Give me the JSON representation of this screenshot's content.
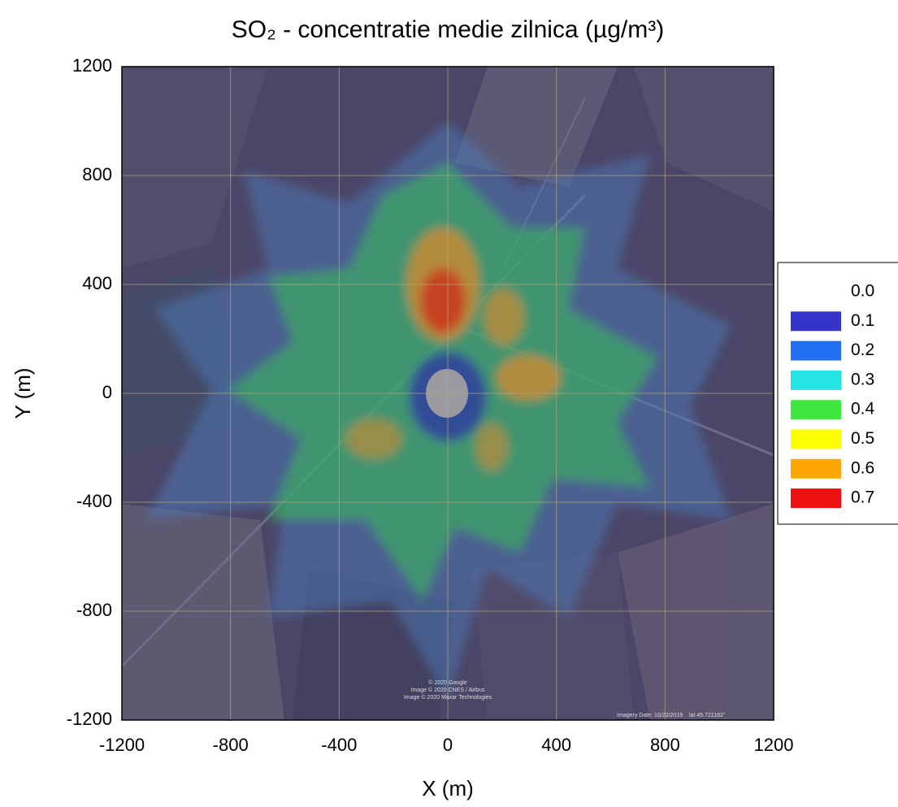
{
  "chart_data": {
    "type": "contour",
    "title": "SO₂ - concentratie medie zilnica (µg/m³)",
    "x_label": "X (m)",
    "y_label": "Y (m)",
    "xlim": [
      -1200,
      1200
    ],
    "ylim": [
      -1200,
      1200
    ],
    "xticks": [
      -1200,
      -800,
      -400,
      0,
      400,
      800,
      1200
    ],
    "yticks": [
      -1200,
      -800,
      -400,
      0,
      400,
      800,
      1200
    ],
    "grid": true,
    "grid_color": "#b8a77a",
    "legend_position": "right",
    "levels": [
      {
        "value": 0,
        "label": "0.0"
      },
      0.1,
      0.2,
      0.3,
      0.4,
      0.5,
      0.6,
      0.7
    ],
    "level_colors": [
      "none",
      "#3434c8",
      "#1f6ff0",
      "#24e4e4",
      "#3ee83e",
      "#ffff00",
      "#ffa500",
      "#ee1111"
    ],
    "attribution": [
      "© 2020 Google",
      "Image © 2020 CNES / Airbus",
      "Image © 2020 Maxar Technologies"
    ],
    "imagery_date": "Imagery Date: 10/22/2019",
    "imagery_lat": "lat  45.721182°"
  }
}
